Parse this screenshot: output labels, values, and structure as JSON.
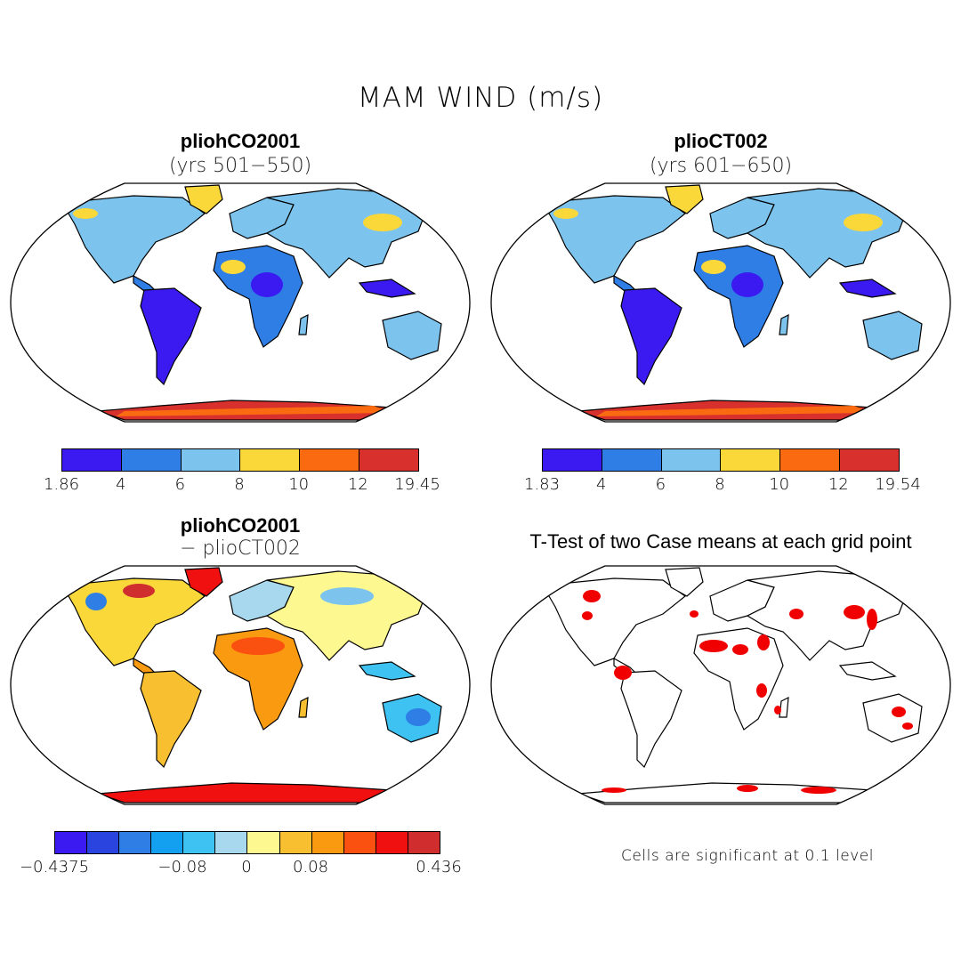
{
  "figure": {
    "title": "MAM WIND (m/s)"
  },
  "panels": {
    "top_left": {
      "title": "pliohCO2001",
      "subtitle": "(yrs 501−550)"
    },
    "top_right": {
      "title": "plioCT002",
      "subtitle": "(yrs 601−650)"
    },
    "bottom_left": {
      "title": "pliohCO2001",
      "subtitle": "− plioCT002"
    },
    "bottom_right": {
      "title": "T-Test of two Case means at each grid point"
    }
  },
  "colorbars": {
    "top_left": {
      "colors": [
        "#3a1af0",
        "#2e7ee6",
        "#7cc4ee",
        "#fad83a",
        "#fa6a10",
        "#d8302c"
      ],
      "labels": [
        "1.86",
        "4",
        "6",
        "8",
        "10",
        "12",
        "19.45"
      ]
    },
    "top_right": {
      "colors": [
        "#3a1af0",
        "#2e7ee6",
        "#7cc4ee",
        "#fad83a",
        "#fa6a10",
        "#d8302c"
      ],
      "labels": [
        "1.83",
        "4",
        "6",
        "8",
        "10",
        "12",
        "19.54"
      ]
    },
    "bottom_left": {
      "colors": [
        "#3a1af0",
        "#2a44e0",
        "#2e7ee6",
        "#14a0f0",
        "#3ec2f2",
        "#a8d8ee",
        "#fef890",
        "#f8c030",
        "#fa9a10",
        "#fa5010",
        "#f01010",
        "#d02e2e"
      ],
      "labels": [
        "−0.4375",
        "−0.08",
        "0",
        "0.08",
        "0.436"
      ]
    }
  },
  "footnote": "Cells are significant at 0.1 level"
}
